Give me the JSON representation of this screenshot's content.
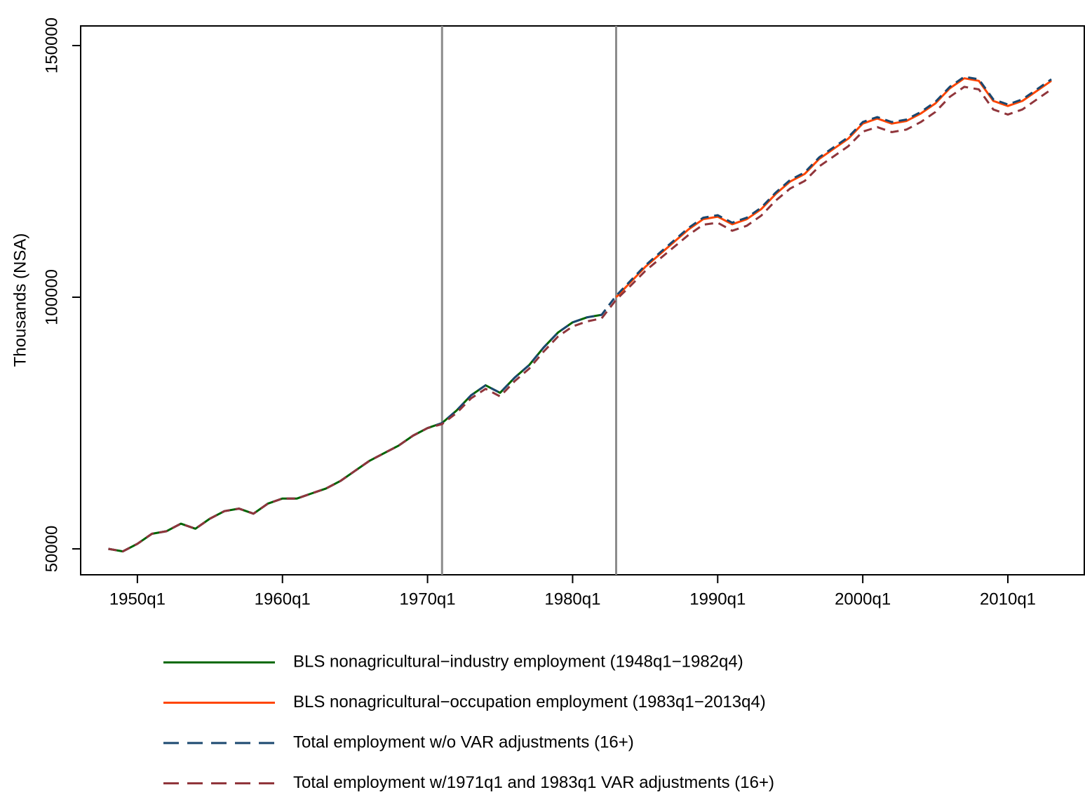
{
  "chart_data": {
    "type": "line",
    "y_label": "Thousands (NSA)",
    "x": [
      1948,
      1949,
      1950,
      1951,
      1952,
      1953,
      1954,
      1955,
      1956,
      1957,
      1958,
      1959,
      1960,
      1961,
      1962,
      1963,
      1964,
      1965,
      1966,
      1967,
      1968,
      1969,
      1970,
      1971,
      1972,
      1973,
      1974,
      1975,
      1976,
      1977,
      1978,
      1979,
      1980,
      1981,
      1982,
      1983,
      1984,
      1985,
      1986,
      1987,
      1988,
      1989,
      1990,
      1991,
      1992,
      1993,
      1994,
      1995,
      1996,
      1997,
      1998,
      1999,
      2000,
      2001,
      2002,
      2003,
      2004,
      2005,
      2006,
      2007,
      2008,
      2009,
      2010,
      2011,
      2012,
      2013
    ],
    "series": [
      {
        "name": "BLS nonagricultural−industry employment (1948q1−1982q4)",
        "color": "#006400",
        "dash": false,
        "values": [
          50000,
          49500,
          51000,
          53000,
          53500,
          55000,
          54000,
          56000,
          57500,
          58000,
          57000,
          59000,
          60000,
          60000,
          61000,
          62000,
          63500,
          65500,
          67500,
          69000,
          70500,
          72500,
          74000,
          75000,
          77500,
          80500,
          82500,
          81000,
          84000,
          86500,
          90000,
          93000,
          95000,
          96000,
          96500,
          null,
          null,
          null,
          null,
          null,
          null,
          null,
          null,
          null,
          null,
          null,
          null,
          null,
          null,
          null,
          null,
          null,
          null,
          null,
          null,
          null,
          null,
          null,
          null,
          null,
          null,
          null,
          null,
          null,
          null,
          null
        ]
      },
      {
        "name": "BLS nonagricultural−occupation employment (1983q1−2013q4)",
        "color": "#ff4500",
        "dash": false,
        "values": [
          null,
          null,
          null,
          null,
          null,
          null,
          null,
          null,
          null,
          null,
          null,
          null,
          null,
          null,
          null,
          null,
          null,
          null,
          null,
          null,
          null,
          null,
          null,
          null,
          null,
          null,
          null,
          null,
          null,
          null,
          null,
          null,
          null,
          null,
          null,
          100000,
          103000,
          106000,
          108500,
          111000,
          113500,
          115500,
          116000,
          114500,
          115500,
          117500,
          120500,
          123000,
          124500,
          127500,
          129500,
          131500,
          134500,
          135500,
          134500,
          135000,
          136500,
          138500,
          141500,
          143500,
          143000,
          139000,
          138000,
          139000,
          141000,
          143000
        ]
      },
      {
        "name": "Total employment w/o VAR adjustments (16+)",
        "color": "#1a476f",
        "dash": true,
        "values": [
          50000,
          49500,
          51000,
          53000,
          53500,
          55000,
          54000,
          56000,
          57500,
          58000,
          57000,
          59000,
          60000,
          60000,
          61000,
          62000,
          63500,
          65500,
          67500,
          69000,
          70500,
          72500,
          74000,
          75000,
          77500,
          80500,
          82500,
          81000,
          84000,
          86500,
          90000,
          93000,
          95000,
          96000,
          96500,
          100300,
          103300,
          106300,
          108800,
          111300,
          113800,
          115800,
          116300,
          114800,
          115800,
          117800,
          120800,
          123300,
          124800,
          127800,
          129800,
          131800,
          134800,
          135800,
          134800,
          135300,
          136800,
          138800,
          141800,
          143800,
          143300,
          139300,
          138300,
          139300,
          141300,
          143300
        ]
      },
      {
        "name": "Total employment w/1971q1 and 1983q1 VAR adjustments (16+)",
        "color": "#90353b",
        "dash": true,
        "values": [
          50000,
          49500,
          51000,
          53000,
          53500,
          55000,
          54000,
          56000,
          57500,
          58000,
          57000,
          59000,
          60000,
          60000,
          61000,
          62000,
          63500,
          65500,
          67500,
          69000,
          70500,
          72500,
          74000,
          74800,
          77000,
          79900,
          81800,
          80300,
          83300,
          85800,
          89200,
          92200,
          94200,
          95200,
          95800,
          99500,
          102300,
          105200,
          107600,
          110000,
          112400,
          114400,
          114800,
          113200,
          114200,
          116200,
          119200,
          121600,
          123100,
          126000,
          128000,
          130000,
          132900,
          133800,
          132800,
          133300,
          134800,
          136800,
          139800,
          141800,
          141300,
          137300,
          136300,
          137300,
          139300,
          141300
        ]
      }
    ],
    "xlim": [
      1946.09,
      2015.27
    ],
    "xticks": [
      {
        "value": 1950,
        "label": "1950q1"
      },
      {
        "value": 1960,
        "label": "1960q1"
      },
      {
        "value": 1970,
        "label": "1970q1"
      },
      {
        "value": 1980,
        "label": "1980q1"
      },
      {
        "value": 1990,
        "label": "1990q1"
      },
      {
        "value": 2000,
        "label": "2000q1"
      },
      {
        "value": 2010,
        "label": "2010q1"
      }
    ],
    "ylim": [
      44850,
      153900
    ],
    "yticks": [
      50000,
      100000,
      150000
    ],
    "vlines": [
      1971,
      1983
    ],
    "grid": false,
    "legend": "bottom"
  }
}
